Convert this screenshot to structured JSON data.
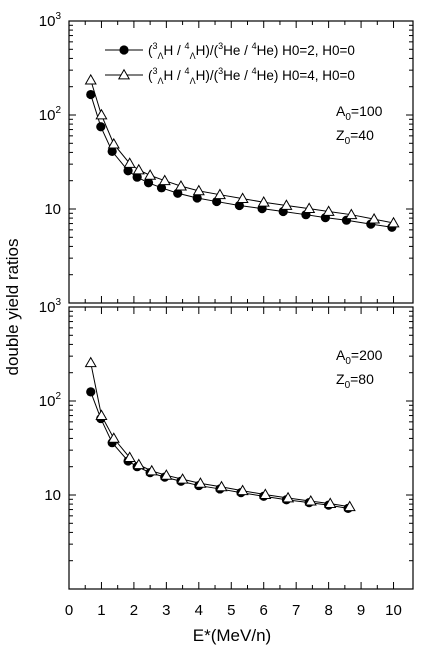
{
  "chart_data": {
    "type": "line",
    "xlabel": "E*(MeV/n)",
    "ylabel": "double yield ratios",
    "xlim": [
      0,
      10.6
    ],
    "x_ticks": [
      "0",
      "1",
      "2",
      "3",
      "4",
      "5",
      "6",
      "7",
      "8",
      "9",
      "10"
    ],
    "legend": {
      "placement": "top-right",
      "entries": [
        {
          "marker": "filled-circle",
          "formula": "(3ΛH / 4ΛH)/(3He / 4He)",
          "params": "H0=2, H0=0"
        },
        {
          "marker": "open-triangle",
          "formula": "(3ΛH / 4ΛH)/(3He / 4He)",
          "params": "H0=4, H0=0"
        }
      ]
    },
    "panels": [
      {
        "position": "top",
        "annotation": {
          "A0": "100",
          "Z0": "40"
        },
        "y_scale": "log",
        "ylim": [
          1,
          1000
        ],
        "y_ticks": [
          "10",
          "10^2",
          "10^3"
        ],
        "series": [
          {
            "marker": "filled-circle",
            "x": [
              0.67,
              0.98,
              1.33,
              1.82,
              2.1,
              2.45,
              2.85,
              3.35,
              3.95,
              4.55,
              5.25,
              5.95,
              6.6,
              7.3,
              7.9,
              8.55,
              9.3,
              9.95
            ],
            "y": [
              165,
              75,
              41,
              25.5,
              21.8,
              19,
              16.8,
              14.7,
              13.1,
              12,
              10.9,
              10.1,
              9.4,
              8.7,
              8.1,
              7.6,
              6.9,
              6.4
            ]
          },
          {
            "marker": "open-triangle",
            "x": [
              0.67,
              1.0,
              1.38,
              1.87,
              2.15,
              2.5,
              2.95,
              3.45,
              4.0,
              4.65,
              5.35,
              6.0,
              6.7,
              7.4,
              8.0,
              8.7,
              9.4,
              10.0
            ],
            "y": [
              235,
              100,
              49,
              30.5,
              26,
              22.8,
              20,
              17.5,
              15.6,
              14.2,
              12.9,
              11.8,
              10.9,
              10.1,
              9.4,
              8.7,
              7.8,
              7.1
            ]
          }
        ]
      },
      {
        "position": "bottom",
        "annotation": {
          "A0": "200",
          "Z0": "80"
        },
        "y_scale": "log",
        "ylim": [
          1,
          1000
        ],
        "y_ticks": [
          "10",
          "10^2",
          "10^3"
        ],
        "series": [
          {
            "marker": "filled-circle",
            "x": [
              0.67,
              0.98,
              1.33,
              1.82,
              2.1,
              2.5,
              2.95,
              3.45,
              4.0,
              4.65,
              5.3,
              6.0,
              6.7,
              7.4,
              8.0,
              8.6
            ],
            "y": [
              125,
              65,
              36,
              23,
              20,
              17.3,
              15.5,
              14,
              12.6,
              11.6,
              10.6,
              9.7,
              8.9,
              8.3,
              7.8,
              7.2
            ]
          },
          {
            "marker": "open-triangle",
            "x": [
              0.67,
              1.0,
              1.38,
              1.87,
              2.15,
              2.55,
              3.0,
              3.5,
              4.05,
              4.7,
              5.35,
              6.05,
              6.75,
              7.45,
              8.05,
              8.65
            ],
            "y": [
              255,
              70,
              40,
              25,
              21,
              18,
              16.2,
              14.7,
              13.3,
              12.2,
              11.1,
              10.1,
              9.3,
              8.6,
              8.1,
              7.5
            ]
          }
        ]
      }
    ]
  }
}
